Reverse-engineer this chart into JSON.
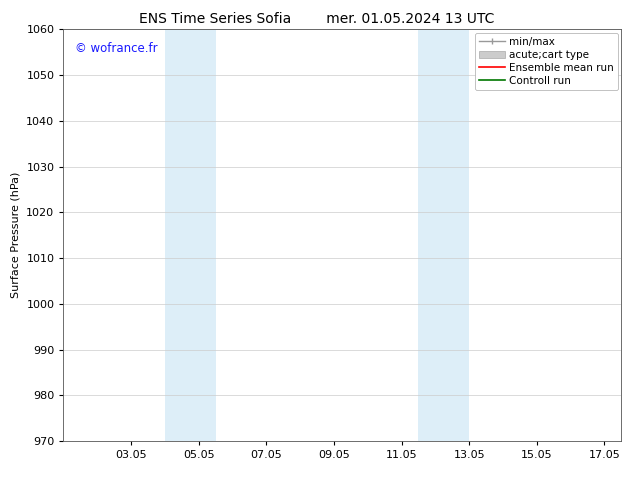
{
  "title_left": "ENS Time Series Sofia",
  "title_right": "mer. 01.05.2024 13 UTC",
  "ylabel": "Surface Pressure (hPa)",
  "ylim": [
    970,
    1060
  ],
  "yticks": [
    970,
    980,
    990,
    1000,
    1010,
    1020,
    1030,
    1040,
    1050,
    1060
  ],
  "xlim": [
    1.0,
    17.5
  ],
  "xtick_labels": [
    "03.05",
    "05.05",
    "07.05",
    "09.05",
    "11.05",
    "13.05",
    "15.05",
    "17.05"
  ],
  "xtick_positions": [
    3,
    5,
    7,
    9,
    11,
    13,
    15,
    17
  ],
  "shaded_regions": [
    {
      "xmin": 4.0,
      "xmax": 5.5,
      "color": "#ddeef8"
    },
    {
      "xmin": 11.5,
      "xmax": 13.0,
      "color": "#ddeef8"
    }
  ],
  "watermark": "© wofrance.fr",
  "watermark_color": "#1a1aff",
  "bg_color": "#ffffff",
  "grid_color": "#cccccc",
  "title_fontsize": 10,
  "axis_label_fontsize": 8,
  "tick_fontsize": 8,
  "legend_fontsize": 7.5
}
